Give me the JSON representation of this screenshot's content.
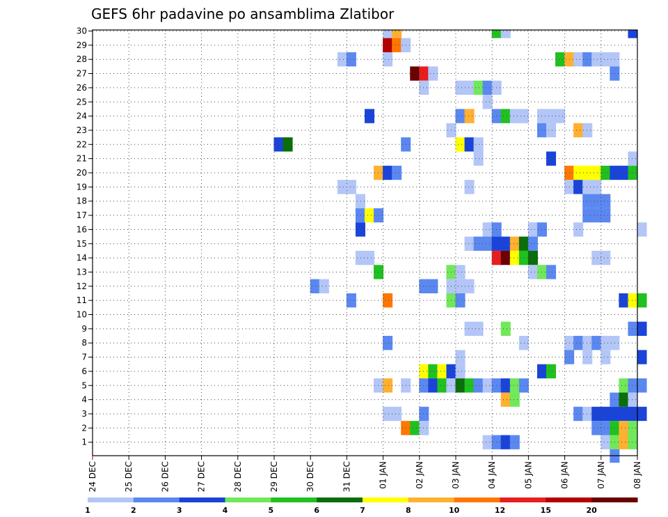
{
  "chart_data": {
    "type": "heatmap",
    "title": "GEFS 6hr padavine po ansamblima Zlatibor",
    "x_ticks": [
      "24 DEC",
      "25 DEC",
      "26 DEC",
      "27 DEC",
      "28 DEC",
      "29 DEC",
      "30 DEC",
      "31 DEC",
      "01 JAN",
      "02 JAN",
      "03 JAN",
      "04 JAN",
      "05 JAN",
      "06 JAN",
      "07 JAN",
      "08 JAN"
    ],
    "y_ticks": [
      "1",
      "2",
      "3",
      "4",
      "5",
      "6",
      "7",
      "8",
      "9",
      "10",
      "11",
      "12",
      "13",
      "14",
      "15",
      "16",
      "17",
      "18",
      "19",
      "20",
      "21",
      "22",
      "23",
      "24",
      "25",
      "26",
      "27",
      "28",
      "29",
      "30"
    ],
    "x_unit": "6-hour step since 24 DEC 00Z",
    "x_range": [
      0,
      60
    ],
    "y_range": [
      1,
      30
    ],
    "grid": true,
    "colorbar": {
      "labels": [
        "1",
        "2",
        "3",
        "4",
        "5",
        "6",
        "7",
        "8",
        "10",
        "12",
        "15",
        "20"
      ],
      "colors": [
        "#b3c6f7",
        "#5b88f0",
        "#1a44d9",
        "#70e85a",
        "#20c020",
        "#0a6e0a",
        "#ffff00",
        "#ffb030",
        "#ff7700",
        "#e81e1e",
        "#b40000",
        "#6a0000"
      ]
    },
    "cells": [
      [
        32,
        30,
        0
      ],
      [
        33,
        30,
        7
      ],
      [
        44,
        30,
        4
      ],
      [
        45,
        30,
        0
      ],
      [
        59,
        30,
        2
      ],
      [
        32,
        29,
        10
      ],
      [
        33,
        29,
        8
      ],
      [
        34,
        29,
        0
      ],
      [
        27,
        28,
        0
      ],
      [
        28,
        28,
        1
      ],
      [
        32,
        28,
        0
      ],
      [
        51,
        28,
        4
      ],
      [
        52,
        28,
        7
      ],
      [
        53,
        28,
        0
      ],
      [
        54,
        28,
        1
      ],
      [
        55,
        28,
        0
      ],
      [
        56,
        28,
        0
      ],
      [
        57,
        28,
        0
      ],
      [
        35,
        27,
        11
      ],
      [
        36,
        27,
        9
      ],
      [
        37,
        27,
        0
      ],
      [
        57,
        27,
        1
      ],
      [
        36,
        26,
        0
      ],
      [
        40,
        26,
        0
      ],
      [
        41,
        26,
        0
      ],
      [
        42,
        26,
        3
      ],
      [
        43,
        26,
        1
      ],
      [
        44,
        26,
        0
      ],
      [
        43,
        25,
        0
      ],
      [
        30,
        24,
        2
      ],
      [
        40,
        24,
        1
      ],
      [
        41,
        24,
        7
      ],
      [
        44,
        24,
        1
      ],
      [
        45,
        24,
        4
      ],
      [
        46,
        24,
        0
      ],
      [
        47,
        24,
        0
      ],
      [
        49,
        24,
        0
      ],
      [
        50,
        24,
        0
      ],
      [
        51,
        24,
        0
      ],
      [
        39,
        23,
        0
      ],
      [
        49,
        23,
        1
      ],
      [
        50,
        23,
        0
      ],
      [
        53,
        23,
        7
      ],
      [
        54,
        23,
        0
      ],
      [
        20,
        22,
        2
      ],
      [
        21,
        22,
        5
      ],
      [
        34,
        22,
        1
      ],
      [
        40,
        22,
        6
      ],
      [
        41,
        22,
        2
      ],
      [
        42,
        22,
        0
      ],
      [
        42,
        21,
        0
      ],
      [
        50,
        21,
        2
      ],
      [
        59,
        21,
        0
      ],
      [
        31,
        20,
        7
      ],
      [
        32,
        20,
        2
      ],
      [
        33,
        20,
        1
      ],
      [
        52,
        20,
        8
      ],
      [
        53,
        20,
        6
      ],
      [
        54,
        20,
        6
      ],
      [
        55,
        20,
        6
      ],
      [
        56,
        20,
        4
      ],
      [
        57,
        20,
        2
      ],
      [
        58,
        20,
        2
      ],
      [
        59,
        20,
        4
      ],
      [
        27,
        19,
        0
      ],
      [
        28,
        19,
        0
      ],
      [
        41,
        19,
        0
      ],
      [
        52,
        19,
        0
      ],
      [
        53,
        19,
        2
      ],
      [
        54,
        19,
        0
      ],
      [
        55,
        19,
        0
      ],
      [
        29,
        18,
        0
      ],
      [
        54,
        18,
        1
      ],
      [
        55,
        18,
        1
      ],
      [
        56,
        18,
        1
      ],
      [
        29,
        17,
        1
      ],
      [
        30,
        17,
        6
      ],
      [
        31,
        17,
        1
      ],
      [
        54,
        17,
        1
      ],
      [
        55,
        17,
        1
      ],
      [
        56,
        17,
        1
      ],
      [
        29,
        16,
        2
      ],
      [
        43,
        16,
        0
      ],
      [
        44,
        16,
        1
      ],
      [
        48,
        16,
        0
      ],
      [
        49,
        16,
        1
      ],
      [
        53,
        16,
        0
      ],
      [
        60,
        16,
        0
      ],
      [
        41,
        15,
        0
      ],
      [
        42,
        15,
        1
      ],
      [
        43,
        15,
        1
      ],
      [
        44,
        15,
        2
      ],
      [
        45,
        15,
        2
      ],
      [
        46,
        15,
        7
      ],
      [
        47,
        15,
        5
      ],
      [
        48,
        15,
        1
      ],
      [
        29,
        14,
        0
      ],
      [
        30,
        14,
        0
      ],
      [
        44,
        14,
        9
      ],
      [
        45,
        14,
        11
      ],
      [
        46,
        14,
        6
      ],
      [
        47,
        14,
        4
      ],
      [
        48,
        14,
        5
      ],
      [
        55,
        14,
        0
      ],
      [
        56,
        14,
        0
      ],
      [
        31,
        13,
        4
      ],
      [
        39,
        13,
        3
      ],
      [
        40,
        13,
        0
      ],
      [
        48,
        13,
        0
      ],
      [
        49,
        13,
        3
      ],
      [
        50,
        13,
        1
      ],
      [
        24,
        12,
        1
      ],
      [
        25,
        12,
        0
      ],
      [
        36,
        12,
        1
      ],
      [
        37,
        12,
        1
      ],
      [
        39,
        12,
        0
      ],
      [
        40,
        12,
        0
      ],
      [
        41,
        12,
        0
      ],
      [
        28,
        11,
        1
      ],
      [
        32,
        11,
        8
      ],
      [
        39,
        11,
        3
      ],
      [
        40,
        11,
        1
      ],
      [
        58,
        11,
        2
      ],
      [
        59,
        11,
        6
      ],
      [
        60,
        11,
        4
      ],
      [
        41,
        9,
        0
      ],
      [
        42,
        9,
        0
      ],
      [
        45,
        9,
        3
      ],
      [
        59,
        9,
        1
      ],
      [
        60,
        9,
        2
      ],
      [
        32,
        8,
        1
      ],
      [
        47,
        8,
        0
      ],
      [
        52,
        8,
        0
      ],
      [
        53,
        8,
        1
      ],
      [
        54,
        8,
        0
      ],
      [
        55,
        8,
        1
      ],
      [
        56,
        8,
        0
      ],
      [
        57,
        8,
        0
      ],
      [
        40,
        7,
        0
      ],
      [
        52,
        7,
        1
      ],
      [
        54,
        7,
        0
      ],
      [
        56,
        7,
        0
      ],
      [
        60,
        7,
        2
      ],
      [
        36,
        6,
        6
      ],
      [
        37,
        6,
        4
      ],
      [
        38,
        6,
        6
      ],
      [
        39,
        6,
        2
      ],
      [
        40,
        6,
        0
      ],
      [
        49,
        6,
        2
      ],
      [
        50,
        6,
        4
      ],
      [
        31,
        5,
        0
      ],
      [
        32,
        5,
        7
      ],
      [
        34,
        5,
        0
      ],
      [
        36,
        5,
        1
      ],
      [
        37,
        5,
        2
      ],
      [
        38,
        5,
        4
      ],
      [
        39,
        5,
        0
      ],
      [
        40,
        5,
        5
      ],
      [
        41,
        5,
        4
      ],
      [
        42,
        5,
        1
      ],
      [
        43,
        5,
        0
      ],
      [
        44,
        5,
        1
      ],
      [
        45,
        5,
        2
      ],
      [
        46,
        5,
        3
      ],
      [
        47,
        5,
        1
      ],
      [
        58,
        5,
        3
      ],
      [
        59,
        5,
        1
      ],
      [
        60,
        5,
        1
      ],
      [
        45,
        4,
        7
      ],
      [
        46,
        4,
        3
      ],
      [
        57,
        4,
        1
      ],
      [
        58,
        4,
        5
      ],
      [
        59,
        4,
        0
      ],
      [
        32,
        3,
        0
      ],
      [
        33,
        3,
        0
      ],
      [
        36,
        3,
        1
      ],
      [
        53,
        3,
        1
      ],
      [
        54,
        3,
        0
      ],
      [
        55,
        3,
        2
      ],
      [
        56,
        3,
        2
      ],
      [
        57,
        3,
        2
      ],
      [
        58,
        3,
        2
      ],
      [
        59,
        3,
        2
      ],
      [
        60,
        3,
        2
      ],
      [
        34,
        2,
        8
      ],
      [
        35,
        2,
        4
      ],
      [
        36,
        2,
        0
      ],
      [
        55,
        2,
        1
      ],
      [
        56,
        2,
        1
      ],
      [
        57,
        2,
        4
      ],
      [
        58,
        2,
        7
      ],
      [
        59,
        2,
        3
      ],
      [
        43,
        1,
        0
      ],
      [
        44,
        1,
        1
      ],
      [
        45,
        1,
        2
      ],
      [
        46,
        1,
        1
      ],
      [
        56,
        1,
        0
      ],
      [
        57,
        1,
        3
      ],
      [
        58,
        1,
        7
      ],
      [
        59,
        1,
        3
      ],
      [
        57,
        0,
        1
      ]
    ]
  }
}
